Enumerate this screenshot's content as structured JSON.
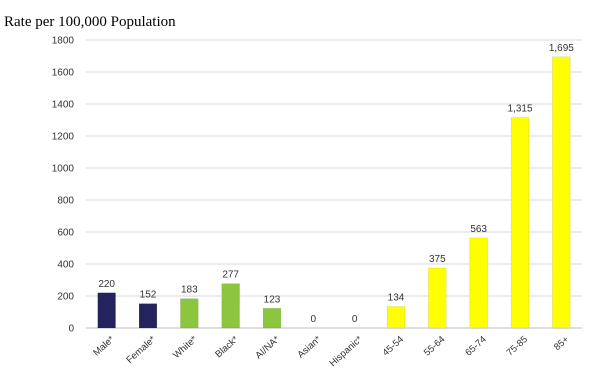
{
  "chart_data": {
    "type": "bar",
    "title": "",
    "ylabel": "Rate per 100,000 Population",
    "xlabel": "",
    "ylim": [
      0,
      1800
    ],
    "yticks": [
      0,
      200,
      400,
      600,
      800,
      1000,
      1200,
      1400,
      1600,
      1800
    ],
    "grid": true,
    "legend": "none",
    "categories": [
      "Male*",
      "Female*",
      "White*",
      "Black*",
      "AI/NA*",
      "Asian*",
      "Hispanic*",
      "45-54",
      "55-64",
      "65-74",
      "75-85",
      "85+"
    ],
    "values": [
      220,
      152,
      183,
      277,
      123,
      0,
      0,
      134,
      375,
      563,
      1315,
      1695
    ],
    "data_labels": [
      "220",
      "152",
      "183",
      "277",
      "123",
      "0",
      "0",
      "134",
      "375",
      "563",
      "1,315",
      "1,695"
    ],
    "bar_colors": [
      "#24235e",
      "#24235e",
      "#8cc63f",
      "#8cc63f",
      "#8cc63f",
      "#8cc63f",
      "#8cc63f",
      "#ffff00",
      "#ffff00",
      "#ffff00",
      "#ffff00",
      "#ffff00"
    ]
  }
}
